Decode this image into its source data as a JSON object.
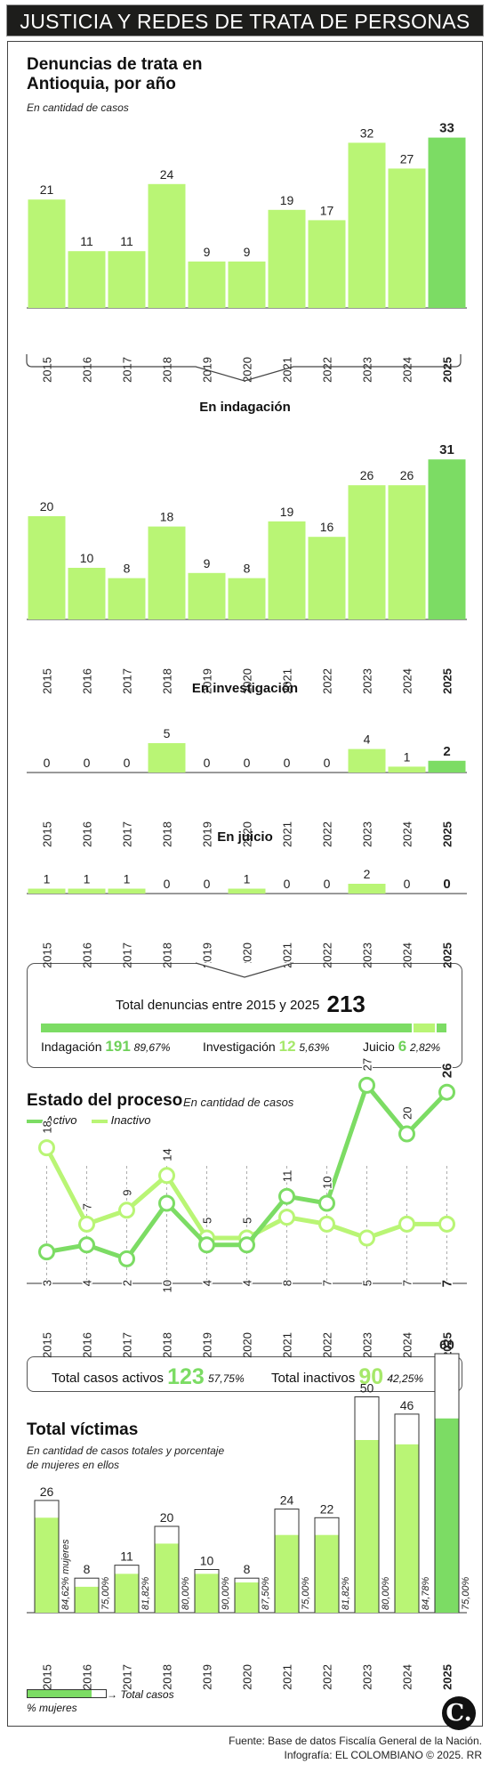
{
  "title": "JUSTICIA Y REDES DE TRATA DE PERSONAS",
  "years": [
    "2015",
    "2016",
    "2017",
    "2018",
    "2019",
    "2020",
    "2021",
    "2022",
    "2023",
    "2024",
    "2025"
  ],
  "colors": {
    "light": "#b9f575",
    "strong": "#7cdc64",
    "dark": "#111111"
  },
  "chart_data": [
    {
      "type": "bar",
      "title": "Denuncias de trata en Antioquia, por año",
      "subtitle": "En cantidad de casos",
      "categories": [
        "2015",
        "2016",
        "2017",
        "2018",
        "2019",
        "2020",
        "2021",
        "2022",
        "2023",
        "2024",
        "2025"
      ],
      "values": [
        21,
        11,
        11,
        24,
        9,
        9,
        19,
        17,
        32,
        27,
        33
      ]
    },
    {
      "type": "bar",
      "title": "En indagación",
      "categories": [
        "2015",
        "2016",
        "2017",
        "2018",
        "2019",
        "2020",
        "2021",
        "2022",
        "2023",
        "2024",
        "2025"
      ],
      "values": [
        20,
        10,
        8,
        18,
        9,
        8,
        19,
        16,
        26,
        26,
        31
      ]
    },
    {
      "type": "bar",
      "title": "En investigación",
      "categories": [
        "2015",
        "2016",
        "2017",
        "2018",
        "2019",
        "2020",
        "2021",
        "2022",
        "2023",
        "2024",
        "2025"
      ],
      "values": [
        0,
        0,
        0,
        5,
        0,
        0,
        0,
        0,
        4,
        1,
        2
      ]
    },
    {
      "type": "bar",
      "title": "En juicio",
      "categories": [
        "2015",
        "2016",
        "2017",
        "2018",
        "2019",
        "2020",
        "2021",
        "2022",
        "2023",
        "2024",
        "2025"
      ],
      "values": [
        1,
        1,
        1,
        0,
        0,
        1,
        0,
        0,
        2,
        0,
        0
      ]
    },
    {
      "type": "line",
      "title": "Estado del proceso",
      "subtitle": "En cantidad de casos",
      "x": [
        "2015",
        "2016",
        "2017",
        "2018",
        "2019",
        "2020",
        "2021",
        "2022",
        "2023",
        "2024",
        "2025"
      ],
      "series": [
        {
          "name": "Activo",
          "values": [
            3,
            4,
            2,
            10,
            4,
            4,
            11,
            10,
            27,
            20,
            26
          ]
        },
        {
          "name": "Inactivo",
          "values": [
            18,
            7,
            9,
            14,
            5,
            5,
            8,
            7,
            5,
            7,
            7
          ]
        }
      ],
      "legend": "top-left"
    },
    {
      "type": "bar",
      "title": "Total víctimas",
      "subtitle": "En cantidad de casos totales y porcentaje de mujeres en ellos",
      "categories": [
        "2015",
        "2016",
        "2017",
        "2018",
        "2019",
        "2020",
        "2021",
        "2022",
        "2023",
        "2024",
        "2025"
      ],
      "values": [
        26,
        8,
        11,
        20,
        10,
        8,
        24,
        22,
        50,
        46,
        60
      ],
      "women_pct": [
        84.62,
        75.0,
        81.82,
        80.0,
        90.0,
        87.5,
        75.0,
        81.82,
        80.0,
        84.78,
        75.0
      ],
      "pct_labels": [
        "84,62% mujeres",
        "75,00%",
        "81,82%",
        "80,00%",
        "90,00%",
        "87,50%",
        "75,00%",
        "81,82%",
        "80,00%",
        "84,78%",
        "75,00%"
      ],
      "legend": [
        "% mujeres",
        "Total casos"
      ]
    }
  ],
  "summary": {
    "label": "Total denuncias entre 2015 y 2025",
    "total": "213",
    "items": [
      {
        "label": "Indagación",
        "value": "191",
        "pct": "89,67%",
        "share": 89.67
      },
      {
        "label": "Investigación",
        "value": "12",
        "pct": "5,63%",
        "share": 5.63
      },
      {
        "label": "Juicio",
        "value": "6",
        "pct": "2,82%",
        "share": 2.82
      }
    ]
  },
  "totals": {
    "active_label": "Total casos activos",
    "active": "123",
    "active_pct": "57,75%",
    "inactive_label": "Total inactivos",
    "inactive": "90",
    "inactive_pct": "42,25%"
  },
  "footer": {
    "source": "Fuente: Base de datos Fiscalía General de la Nación.",
    "credit": "Infografía: EL COLOMBIANO © 2025. RR"
  },
  "logo": "C."
}
